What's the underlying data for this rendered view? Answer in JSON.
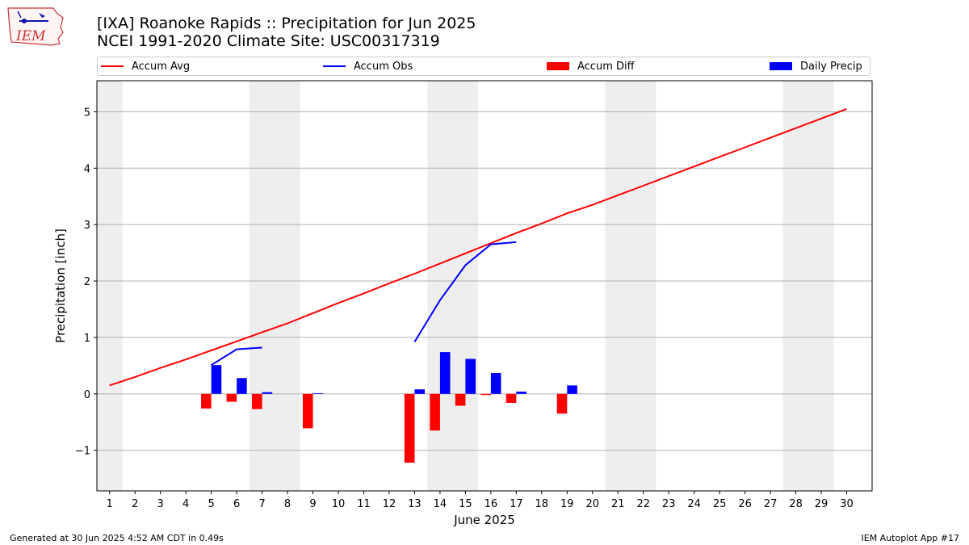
{
  "header": {
    "title_line1": "[IXA] Roanoke Rapids :: Precipitation for Jun 2025",
    "title_line2": "NCEI 1991-2020 Climate Site: USC00317319",
    "logo_text": "IEM"
  },
  "footer": {
    "left": "Generated at 30 Jun 2025 4:52 AM CDT in 0.49s",
    "right": "IEM Autoplot App #17"
  },
  "chart_data": {
    "type": "bar",
    "xlabel": "June 2025",
    "ylabel": "Precipitation [inch]",
    "ylim": [
      -1.72,
      5.55
    ],
    "xlim": [
      0.5,
      31.0
    ],
    "yticks": [
      -1,
      0,
      1,
      2,
      3,
      4,
      5
    ],
    "ytick_labels": [
      "−1",
      "0",
      "1",
      "2",
      "3",
      "4",
      "5"
    ],
    "xticks": [
      1,
      2,
      3,
      4,
      5,
      6,
      7,
      8,
      9,
      10,
      11,
      12,
      13,
      14,
      15,
      16,
      17,
      18,
      19,
      20,
      21,
      22,
      23,
      24,
      25,
      26,
      27,
      28,
      29,
      30
    ],
    "grid": "horizontal",
    "legend_placement": "top",
    "weekend_shading": [
      [
        0.5,
        1.5
      ],
      [
        6.5,
        8.5
      ],
      [
        13.5,
        15.5
      ],
      [
        20.5,
        22.5
      ],
      [
        27.5,
        29.5
      ]
    ],
    "colors": {
      "accum_avg": "#ff0000",
      "accum_obs": "#0000ff",
      "accum_diff": "#ff0000",
      "daily_precip": "#0000ff",
      "weekend": "#eeeeee",
      "grid": "#b0b0b0"
    },
    "series": [
      {
        "name": "Accum Avg",
        "kind": "line",
        "x": [
          1,
          2,
          3,
          4,
          5,
          6,
          7,
          8,
          9,
          10,
          11,
          12,
          13,
          14,
          15,
          16,
          17,
          18,
          19,
          20,
          21,
          22,
          23,
          24,
          25,
          26,
          27,
          28,
          29,
          30
        ],
        "values": [
          0.15,
          0.3,
          0.46,
          0.61,
          0.77,
          0.93,
          1.09,
          1.25,
          1.43,
          1.61,
          1.78,
          1.96,
          2.13,
          2.31,
          2.49,
          2.67,
          2.85,
          3.02,
          3.2,
          3.35,
          3.52,
          3.69,
          3.86,
          4.03,
          4.2,
          4.37,
          4.54,
          4.71,
          4.88,
          5.05
        ]
      },
      {
        "name": "Accum Obs",
        "kind": "line",
        "x": [
          5,
          6,
          7,
          null,
          13,
          14,
          15,
          16,
          17
        ],
        "values": [
          0.51,
          0.79,
          0.82,
          null,
          0.92,
          1.66,
          2.28,
          2.65,
          2.69
        ]
      },
      {
        "name": "Accum Diff",
        "kind": "bar",
        "x": [
          5,
          6,
          7,
          9,
          13,
          14,
          15,
          16,
          17,
          19
        ],
        "values": [
          -0.26,
          -0.14,
          -0.27,
          -0.61,
          -1.22,
          -0.65,
          -0.21,
          -0.02,
          -0.16,
          -0.35
        ]
      },
      {
        "name": "Daily Precip",
        "kind": "bar",
        "x": [
          5,
          6,
          7,
          9,
          13,
          14,
          15,
          16,
          17,
          19
        ],
        "values": [
          0.51,
          0.28,
          0.03,
          0.01,
          0.08,
          0.74,
          0.62,
          0.37,
          0.04,
          0.15
        ]
      }
    ]
  }
}
